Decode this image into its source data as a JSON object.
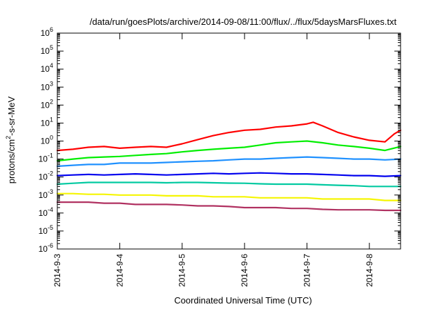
{
  "chart_data": {
    "type": "line",
    "title": "/data/run/goesPlots/archive/2014-09-08/11:00/flux/../flux/5daysMarsFluxes.txt",
    "xlabel": "Coordinated Universal Time (UTC)",
    "ylabel_parts": [
      "protons/cm",
      "2",
      "-s-sr-MeV"
    ],
    "yscale": "log",
    "ylim": [
      1e-06,
      1000000
    ],
    "xlim": [
      0,
      5.5
    ],
    "y_ticks": [
      {
        "value": 1e-06,
        "base": "10",
        "exp": "-6"
      },
      {
        "value": 1e-05,
        "base": "10",
        "exp": "-5"
      },
      {
        "value": 0.0001,
        "base": "10",
        "exp": "-4"
      },
      {
        "value": 0.001,
        "base": "10",
        "exp": "-3"
      },
      {
        "value": 0.01,
        "base": "10",
        "exp": "-2"
      },
      {
        "value": 0.1,
        "base": "10",
        "exp": "-1"
      },
      {
        "value": 1,
        "base": "10",
        "exp": "0"
      },
      {
        "value": 10,
        "base": "10",
        "exp": "1"
      },
      {
        "value": 100,
        "base": "10",
        "exp": "2"
      },
      {
        "value": 1000,
        "base": "10",
        "exp": "3"
      },
      {
        "value": 10000,
        "base": "10",
        "exp": "4"
      },
      {
        "value": 100000,
        "base": "10",
        "exp": "5"
      },
      {
        "value": 1000000,
        "base": "10",
        "exp": "6"
      }
    ],
    "x_ticks": [
      {
        "value": 0,
        "label": "2014-9-3"
      },
      {
        "value": 1,
        "label": "2014-9-4"
      },
      {
        "value": 2,
        "label": "2014-9-5"
      },
      {
        "value": 3,
        "label": "2014-9-6"
      },
      {
        "value": 4,
        "label": "2014-9-7"
      },
      {
        "value": 5,
        "label": "2014-9-8"
      }
    ],
    "grid": false,
    "legend": "none",
    "series": [
      {
        "color": "#ff0000",
        "x": [
          0,
          0.25,
          0.5,
          0.75,
          1,
          1.25,
          1.5,
          1.75,
          2,
          2.25,
          2.5,
          2.75,
          3,
          3.25,
          3.5,
          3.75,
          4,
          4.1,
          4.25,
          4.5,
          4.75,
          5,
          5.25,
          5.4,
          5.5
        ],
        "y": [
          0.3,
          0.35,
          0.45,
          0.5,
          0.4,
          0.45,
          0.5,
          0.45,
          0.7,
          1.2,
          2,
          3,
          4,
          4.5,
          6,
          7,
          9,
          11,
          7,
          3,
          1.7,
          1.1,
          0.9,
          2.5,
          4
        ]
      },
      {
        "color": "#00ee00",
        "x": [
          0,
          0.25,
          0.5,
          0.75,
          1,
          1.25,
          1.5,
          1.75,
          2,
          2.25,
          2.5,
          2.75,
          3,
          3.25,
          3.5,
          3.75,
          4,
          4.25,
          4.5,
          4.75,
          5,
          5.25,
          5.5
        ],
        "y": [
          0.08,
          0.1,
          0.12,
          0.13,
          0.14,
          0.16,
          0.18,
          0.2,
          0.25,
          0.3,
          0.35,
          0.4,
          0.45,
          0.6,
          0.8,
          0.9,
          1,
          0.8,
          0.6,
          0.5,
          0.4,
          0.3,
          0.5
        ]
      },
      {
        "color": "#1e90ff",
        "x": [
          0,
          0.25,
          0.5,
          0.75,
          1,
          1.25,
          1.5,
          1.75,
          2,
          2.25,
          2.5,
          2.75,
          3,
          3.25,
          3.5,
          3.75,
          4,
          4.25,
          4.5,
          4.75,
          5,
          5.25,
          5.5
        ],
        "y": [
          0.04,
          0.045,
          0.05,
          0.05,
          0.06,
          0.06,
          0.06,
          0.065,
          0.07,
          0.075,
          0.08,
          0.09,
          0.1,
          0.1,
          0.11,
          0.12,
          0.13,
          0.12,
          0.11,
          0.1,
          0.1,
          0.09,
          0.1
        ]
      },
      {
        "color": "#0000ee",
        "x": [
          0,
          0.25,
          0.5,
          0.75,
          1,
          1.25,
          1.5,
          1.75,
          2,
          2.25,
          2.5,
          2.75,
          3,
          3.25,
          3.5,
          3.75,
          4,
          4.25,
          4.5,
          4.75,
          5,
          5.25,
          5.5
        ],
        "y": [
          0.012,
          0.013,
          0.014,
          0.013,
          0.014,
          0.015,
          0.014,
          0.013,
          0.014,
          0.015,
          0.016,
          0.015,
          0.016,
          0.017,
          0.016,
          0.015,
          0.015,
          0.014,
          0.013,
          0.012,
          0.012,
          0.011,
          0.012
        ]
      },
      {
        "color": "#00c9a0",
        "x": [
          0,
          0.25,
          0.5,
          0.75,
          1,
          1.25,
          1.5,
          1.75,
          2,
          2.25,
          2.5,
          2.75,
          3,
          3.25,
          3.5,
          3.75,
          4,
          4.25,
          4.5,
          4.75,
          5,
          5.25,
          5.5
        ],
        "y": [
          0.004,
          0.0045,
          0.005,
          0.005,
          0.005,
          0.005,
          0.005,
          0.0048,
          0.005,
          0.005,
          0.0048,
          0.0046,
          0.0045,
          0.0042,
          0.004,
          0.004,
          0.004,
          0.0037,
          0.0035,
          0.0033,
          0.003,
          0.003,
          0.003
        ]
      },
      {
        "color": "#f5f500",
        "x": [
          0,
          0.25,
          0.5,
          0.75,
          1,
          1.25,
          1.5,
          1.75,
          2,
          2.25,
          2.5,
          2.75,
          3,
          3.25,
          3.5,
          3.75,
          4,
          4.25,
          4.5,
          4.75,
          5,
          5.25,
          5.5
        ],
        "y": [
          0.0012,
          0.0012,
          0.0011,
          0.0011,
          0.001,
          0.001,
          0.001,
          0.0009,
          0.0009,
          0.0009,
          0.0008,
          0.0008,
          0.0008,
          0.0007,
          0.0007,
          0.0007,
          0.0007,
          0.0006,
          0.0006,
          0.0006,
          0.0006,
          0.0005,
          0.0005
        ]
      },
      {
        "color": "#b03060",
        "x": [
          0,
          0.25,
          0.5,
          0.75,
          1,
          1.25,
          1.5,
          1.75,
          2,
          2.25,
          2.5,
          2.75,
          3,
          3.25,
          3.5,
          3.75,
          4,
          4.25,
          4.5,
          4.75,
          5,
          5.25,
          5.5
        ],
        "y": [
          0.0004,
          0.0004,
          0.0004,
          0.00035,
          0.00035,
          0.0003,
          0.0003,
          0.0003,
          0.00028,
          0.00025,
          0.00025,
          0.00023,
          0.0002,
          0.0002,
          0.0002,
          0.00018,
          0.00018,
          0.00016,
          0.00015,
          0.00015,
          0.00015,
          0.00014,
          0.00014
        ]
      }
    ]
  }
}
